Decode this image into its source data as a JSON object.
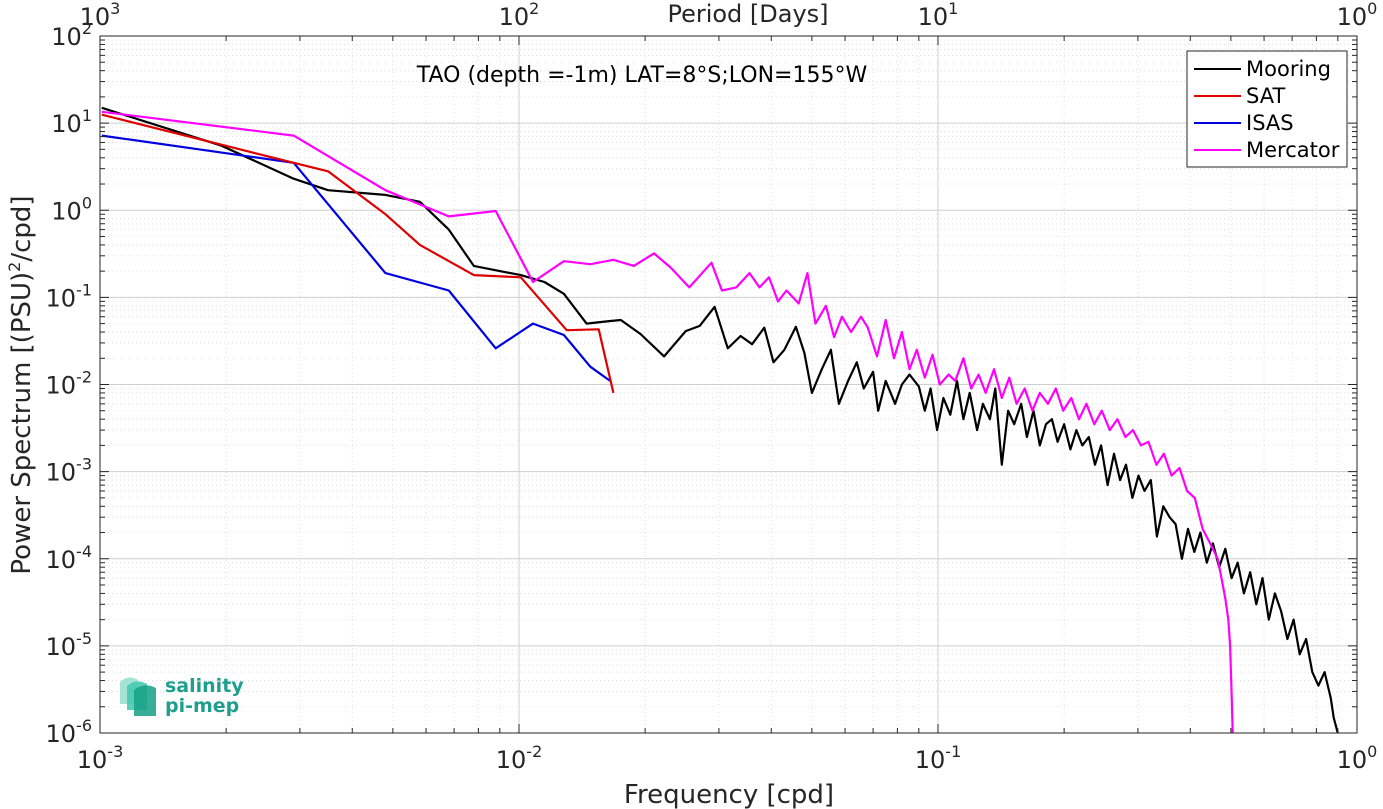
{
  "chart_data": {
    "type": "line",
    "title": "TAO (depth =-1m) LAT=8°S;LON=155°W",
    "xlabel": "Frequency [cpd]",
    "ylabel_parts": [
      "Power Spectrum [(PSU)",
      "2",
      "/cpd]"
    ],
    "top_xlabel": "Period [Days]",
    "xscale": "log",
    "yscale": "log",
    "xlim": [
      0.001,
      1
    ],
    "ylim": [
      1e-06,
      100
    ],
    "grid": true,
    "legend_position": "top-right",
    "x_ticks": [
      {
        "value": 0.001,
        "base": "10",
        "exp": "-3"
      },
      {
        "value": 0.01,
        "base": "10",
        "exp": "-2"
      },
      {
        "value": 0.1,
        "base": "10",
        "exp": "-1"
      },
      {
        "value": 1,
        "base": "10",
        "exp": "0"
      }
    ],
    "top_ticks": [
      {
        "value": 0.001,
        "base": "10",
        "exp": "3"
      },
      {
        "value": 0.01,
        "base": "10",
        "exp": "2"
      },
      {
        "value": 0.1,
        "base": "10",
        "exp": "1"
      },
      {
        "value": 1,
        "base": "10",
        "exp": "0"
      }
    ],
    "y_ticks": [
      {
        "value": 100,
        "base": "10",
        "exp": "2"
      },
      {
        "value": 10,
        "base": "10",
        "exp": "1"
      },
      {
        "value": 1,
        "base": "10",
        "exp": "0"
      },
      {
        "value": 0.1,
        "base": "10",
        "exp": "-1"
      },
      {
        "value": 0.01,
        "base": "10",
        "exp": "-2"
      },
      {
        "value": 0.001,
        "base": "10",
        "exp": "-3"
      },
      {
        "value": 0.0001,
        "base": "10",
        "exp": "-4"
      },
      {
        "value": 1e-05,
        "base": "10",
        "exp": "-5"
      },
      {
        "value": 1e-06,
        "base": "10",
        "exp": "-6"
      }
    ],
    "series": [
      {
        "name": "Mooring",
        "color": "#000000",
        "points": [
          [
            0.00101,
            15
          ],
          [
            0.00195,
            5.5
          ],
          [
            0.0029,
            2.3
          ],
          [
            0.0035,
            1.7
          ],
          [
            0.0048,
            1.5
          ],
          [
            0.0058,
            1.25
          ],
          [
            0.0068,
            0.6
          ],
          [
            0.0078,
            0.23
          ],
          [
            0.009,
            0.2
          ],
          [
            0.0101,
            0.18
          ],
          [
            0.0115,
            0.15
          ],
          [
            0.0128,
            0.11
          ],
          [
            0.0145,
            0.05
          ],
          [
            0.0162,
            0.053
          ],
          [
            0.0175,
            0.055
          ],
          [
            0.0195,
            0.038
          ],
          [
            0.0222,
            0.021
          ],
          [
            0.025,
            0.041
          ],
          [
            0.027,
            0.047
          ],
          [
            0.0293,
            0.078
          ],
          [
            0.0315,
            0.026
          ],
          [
            0.0338,
            0.036
          ],
          [
            0.036,
            0.029
          ],
          [
            0.0385,
            0.045
          ],
          [
            0.0405,
            0.018
          ],
          [
            0.043,
            0.025
          ],
          [
            0.0458,
            0.046
          ],
          [
            0.048,
            0.023
          ],
          [
            0.05,
            0.008
          ],
          [
            0.0528,
            0.015
          ],
          [
            0.0555,
            0.025
          ],
          [
            0.058,
            0.006
          ],
          [
            0.061,
            0.011
          ],
          [
            0.064,
            0.018
          ],
          [
            0.0665,
            0.009
          ],
          [
            0.07,
            0.014
          ],
          [
            0.072,
            0.005
          ],
          [
            0.075,
            0.011
          ],
          [
            0.079,
            0.006
          ],
          [
            0.082,
            0.01
          ],
          [
            0.0855,
            0.013
          ],
          [
            0.09,
            0.0095
          ],
          [
            0.093,
            0.005
          ],
          [
            0.096,
            0.009
          ],
          [
            0.0995,
            0.003
          ],
          [
            0.103,
            0.007
          ],
          [
            0.107,
            0.0045
          ],
          [
            0.111,
            0.011
          ],
          [
            0.115,
            0.004
          ],
          [
            0.119,
            0.008
          ],
          [
            0.124,
            0.003
          ],
          [
            0.128,
            0.006
          ],
          [
            0.133,
            0.004
          ],
          [
            0.137,
            0.009
          ],
          [
            0.142,
            0.0012
          ],
          [
            0.147,
            0.005
          ],
          [
            0.152,
            0.0035
          ],
          [
            0.158,
            0.006
          ],
          [
            0.163,
            0.0025
          ],
          [
            0.169,
            0.005
          ],
          [
            0.175,
            0.002
          ],
          [
            0.181,
            0.0035
          ],
          [
            0.187,
            0.004
          ],
          [
            0.193,
            0.0022
          ],
          [
            0.2,
            0.0035
          ],
          [
            0.207,
            0.0018
          ],
          [
            0.214,
            0.003
          ],
          [
            0.221,
            0.002
          ],
          [
            0.229,
            0.0025
          ],
          [
            0.237,
            0.0012
          ],
          [
            0.245,
            0.002
          ],
          [
            0.254,
            0.0007
          ],
          [
            0.263,
            0.0016
          ],
          [
            0.272,
            0.0008
          ],
          [
            0.281,
            0.0012
          ],
          [
            0.291,
            0.0005
          ],
          [
            0.301,
            0.0009
          ],
          [
            0.311,
            0.0006
          ],
          [
            0.322,
            0.0008
          ],
          [
            0.333,
            0.00018
          ],
          [
            0.345,
            0.0004
          ],
          [
            0.357,
            0.0003
          ],
          [
            0.369,
            0.00025
          ],
          [
            0.382,
            0.0001
          ],
          [
            0.395,
            0.00022
          ],
          [
            0.409,
            0.00012
          ],
          [
            0.423,
            0.0002
          ],
          [
            0.438,
            9e-05
          ],
          [
            0.453,
            0.00015
          ],
          [
            0.469,
            8e-05
          ],
          [
            0.485,
            0.00013
          ],
          [
            0.502,
            6e-05
          ],
          [
            0.519,
            9e-05
          ],
          [
            0.537,
            4e-05
          ],
          [
            0.556,
            7e-05
          ],
          [
            0.575,
            3e-05
          ],
          [
            0.595,
            6e-05
          ],
          [
            0.616,
            2e-05
          ],
          [
            0.637,
            4e-05
          ],
          [
            0.659,
            2.5e-05
          ],
          [
            0.682,
            1.2e-05
          ],
          [
            0.706,
            2e-05
          ],
          [
            0.73,
            8e-06
          ],
          [
            0.756,
            1.2e-05
          ],
          [
            0.782,
            5e-06
          ],
          [
            0.809,
            3.5e-06
          ],
          [
            0.837,
            5e-06
          ],
          [
            0.866,
            2.5e-06
          ],
          [
            0.88,
            1.5e-06
          ],
          [
            0.9,
            1e-06
          ]
        ]
      },
      {
        "name": "SAT",
        "color": "#e00000",
        "points": [
          [
            0.00101,
            12.5
          ],
          [
            0.0029,
            3.5
          ],
          [
            0.0035,
            2.8
          ],
          [
            0.0048,
            0.9
          ],
          [
            0.0058,
            0.4
          ],
          [
            0.0078,
            0.18
          ],
          [
            0.0101,
            0.17
          ],
          [
            0.013,
            0.042
          ],
          [
            0.0155,
            0.043
          ],
          [
            0.0168,
            0.008
          ]
        ]
      },
      {
        "name": "ISAS",
        "color": "#0000e0",
        "points": [
          [
            0.00101,
            7.2
          ],
          [
            0.0029,
            3.5
          ],
          [
            0.0048,
            0.19
          ],
          [
            0.0068,
            0.12
          ],
          [
            0.0088,
            0.026
          ],
          [
            0.0108,
            0.05
          ],
          [
            0.0128,
            0.037
          ],
          [
            0.0148,
            0.016
          ],
          [
            0.0165,
            0.011
          ]
        ]
      },
      {
        "name": "Mercator",
        "color": "#ff00ff",
        "points": [
          [
            0.00101,
            13.5
          ],
          [
            0.0029,
            7.2
          ],
          [
            0.0048,
            1.7
          ],
          [
            0.0068,
            0.85
          ],
          [
            0.0088,
            0.98
          ],
          [
            0.0108,
            0.15
          ],
          [
            0.0128,
            0.26
          ],
          [
            0.0148,
            0.24
          ],
          [
            0.0168,
            0.27
          ],
          [
            0.0188,
            0.23
          ],
          [
            0.021,
            0.32
          ],
          [
            0.023,
            0.22
          ],
          [
            0.0255,
            0.13
          ],
          [
            0.0288,
            0.25
          ],
          [
            0.0305,
            0.12
          ],
          [
            0.033,
            0.13
          ],
          [
            0.0355,
            0.19
          ],
          [
            0.0375,
            0.13
          ],
          [
            0.0395,
            0.17
          ],
          [
            0.0415,
            0.09
          ],
          [
            0.0435,
            0.12
          ],
          [
            0.0465,
            0.085
          ],
          [
            0.0488,
            0.19
          ],
          [
            0.051,
            0.05
          ],
          [
            0.054,
            0.08
          ],
          [
            0.0565,
            0.035
          ],
          [
            0.059,
            0.06
          ],
          [
            0.062,
            0.04
          ],
          [
            0.0655,
            0.06
          ],
          [
            0.068,
            0.045
          ],
          [
            0.0715,
            0.021
          ],
          [
            0.075,
            0.055
          ],
          [
            0.0785,
            0.02
          ],
          [
            0.082,
            0.04
          ],
          [
            0.0855,
            0.015
          ],
          [
            0.089,
            0.025
          ],
          [
            0.093,
            0.012
          ],
          [
            0.097,
            0.022
          ],
          [
            0.101,
            0.01
          ],
          [
            0.106,
            0.013
          ],
          [
            0.11,
            0.011
          ],
          [
            0.115,
            0.02
          ],
          [
            0.12,
            0.009
          ],
          [
            0.125,
            0.013
          ],
          [
            0.13,
            0.008
          ],
          [
            0.136,
            0.015
          ],
          [
            0.142,
            0.007
          ],
          [
            0.148,
            0.012
          ],
          [
            0.154,
            0.006
          ],
          [
            0.161,
            0.009
          ],
          [
            0.168,
            0.005
          ],
          [
            0.175,
            0.008
          ],
          [
            0.183,
            0.006
          ],
          [
            0.191,
            0.009
          ],
          [
            0.199,
            0.005
          ],
          [
            0.208,
            0.007
          ],
          [
            0.217,
            0.004
          ],
          [
            0.226,
            0.006
          ],
          [
            0.236,
            0.0035
          ],
          [
            0.246,
            0.005
          ],
          [
            0.257,
            0.003
          ],
          [
            0.268,
            0.004
          ],
          [
            0.28,
            0.0025
          ],
          [
            0.292,
            0.003
          ],
          [
            0.305,
            0.002
          ],
          [
            0.318,
            0.0022
          ],
          [
            0.332,
            0.0012
          ],
          [
            0.346,
            0.0016
          ],
          [
            0.361,
            0.0009
          ],
          [
            0.377,
            0.0011
          ],
          [
            0.393,
            0.0006
          ],
          [
            0.41,
            0.0005
          ],
          [
            0.428,
            0.00022
          ],
          [
            0.446,
            0.00015
          ],
          [
            0.465,
            0.0001
          ],
          [
            0.475,
            6e-05
          ],
          [
            0.485,
            3.5e-05
          ],
          [
            0.493,
            2e-05
          ],
          [
            0.498,
            1e-05
          ],
          [
            0.501,
            4e-06
          ],
          [
            0.503,
            2e-06
          ],
          [
            0.505,
            1e-06
          ]
        ]
      }
    ]
  },
  "logo": {
    "line1": "salinity",
    "line2": "pi-mep",
    "colors": [
      "#16a085",
      "#48c9b0",
      "#a3e4d7"
    ]
  }
}
